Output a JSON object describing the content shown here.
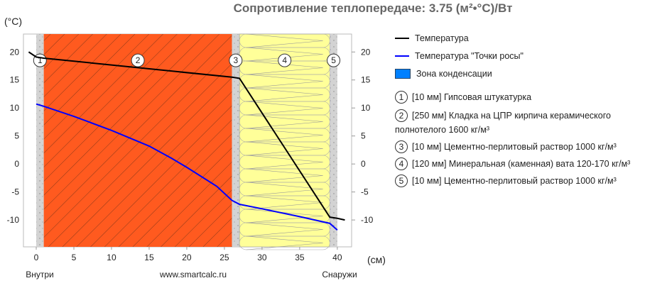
{
  "chart_data": {
    "type": "line",
    "title": "Сопротивление теплопередаче: 3.75 (м²•°C)/Вт",
    "ylabel": "(°C)",
    "xlabel": "(см)",
    "xlim": [
      -1.7,
      41.9
    ],
    "ylim": [
      -14.8,
      23.2
    ],
    "xticks": [
      0,
      5,
      10,
      15,
      20,
      25,
      30,
      35,
      40
    ],
    "yticks": [
      20,
      15,
      10,
      5,
      0,
      -5,
      -10
    ],
    "x_left_label": "Внутри",
    "x_center_label": "www.smartcalc.ru",
    "x_right_label": "Снаружи",
    "series": [
      {
        "name": "Температура",
        "color": "#000000",
        "points": [
          [
            -1,
            20
          ],
          [
            0,
            19.1
          ],
          [
            1,
            18.9
          ],
          [
            26,
            15.5
          ],
          [
            27,
            15.3
          ],
          [
            39,
            -9.5
          ],
          [
            40,
            -9.7
          ],
          [
            41,
            -10
          ]
        ]
      },
      {
        "name": "Температура \"Точки росы\"",
        "color": "#0000ff",
        "points": [
          [
            0,
            10.7
          ],
          [
            1,
            10.3
          ],
          [
            5,
            8.5
          ],
          [
            10,
            6
          ],
          [
            15,
            3.2
          ],
          [
            18,
            1
          ],
          [
            20,
            -0.6
          ],
          [
            24,
            -4
          ],
          [
            26,
            -6.5
          ],
          [
            27,
            -7.2
          ],
          [
            30,
            -8
          ],
          [
            35,
            -9.4
          ],
          [
            39,
            -10.6
          ],
          [
            40,
            -11.8
          ]
        ]
      }
    ],
    "condensation": {
      "name": "Зона конденсации",
      "color": "#0080ff"
    },
    "layers": [
      {
        "n": "1",
        "from": 0,
        "to": 1,
        "kind": "plaster",
        "color": "#d3d3d3",
        "legend": "[10 мм] Гипсовая штукатурка"
      },
      {
        "n": "2",
        "from": 1,
        "to": 26,
        "kind": "brick",
        "color": "#ff5a1f",
        "legend": "[250 мм] Кладка на ЦПР кирпича керамического полнотелого 1600 кг/м³"
      },
      {
        "n": "3",
        "from": 26,
        "to": 27,
        "kind": "plaster",
        "color": "#d3d3d3",
        "legend": "[10 мм] Цементно-перлитовый раствор 1000 кг/м³"
      },
      {
        "n": "4",
        "from": 27,
        "to": 39,
        "kind": "wool",
        "color": "#ffff99",
        "legend": "[120 мм] Минеральная (каменная) вата 120-170 кг/м³"
      },
      {
        "n": "5",
        "from": 39,
        "to": 40,
        "kind": "plaster",
        "color": "#d3d3d3",
        "legend": "[10 мм] Цементно-перлитовый раствор 1000 кг/м³"
      }
    ]
  }
}
